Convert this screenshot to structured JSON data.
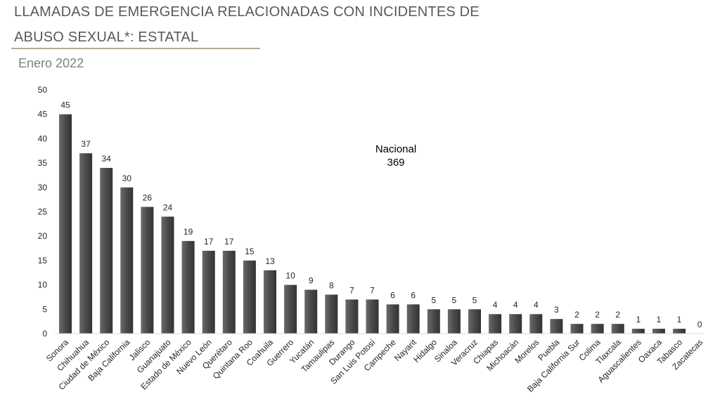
{
  "header": {
    "title_line1": "LLAMADAS DE EMERGENCIA RELACIONADAS CON INCIDENTES DE",
    "title_line2": "ABUSO SEXUAL*: ESTATAL",
    "subtitle": "Enero 2022"
  },
  "chart_data": {
    "type": "bar",
    "title": "LLAMADAS DE EMERGENCIA RELACIONADAS CON INCIDENTES DE ABUSO SEXUAL*: ESTATAL",
    "subtitle": "Enero 2022",
    "categories": [
      "Sonora",
      "Chihuahua",
      "Ciudad de México",
      "Baja California",
      "Jalisco",
      "Guanajuato",
      "Estado de México",
      "Nuevo León",
      "Querétaro",
      "Quintana Roo",
      "Coahuila",
      "Guerrero",
      "Yucatán",
      "Tamaulipas",
      "Durango",
      "San Luis Potosí",
      "Campeche",
      "Nayarit",
      "Hidalgo",
      "Sinaloa",
      "Veracruz",
      "Chiapas",
      "Michoacán",
      "Morelos",
      "Puebla",
      "Baja California Sur",
      "Colima",
      "Tlaxcala",
      "Aguascalientes",
      "Oaxaca",
      "Tabasco",
      "Zacatecas"
    ],
    "values": [
      45,
      37,
      34,
      30,
      26,
      24,
      19,
      17,
      17,
      15,
      13,
      10,
      9,
      8,
      7,
      7,
      6,
      6,
      5,
      5,
      5,
      4,
      4,
      4,
      3,
      2,
      2,
      2,
      1,
      1,
      1,
      0
    ],
    "xlabel": "",
    "ylabel": "",
    "ylim": [
      0,
      50
    ],
    "yticks": [
      0,
      5,
      10,
      15,
      20,
      25,
      30,
      35,
      40,
      45,
      50
    ],
    "grid": false,
    "legend": "none",
    "data_labels": true,
    "annotation": {
      "label": "Nacional",
      "value": "369"
    },
    "bar_color": "#4d4d4d"
  }
}
